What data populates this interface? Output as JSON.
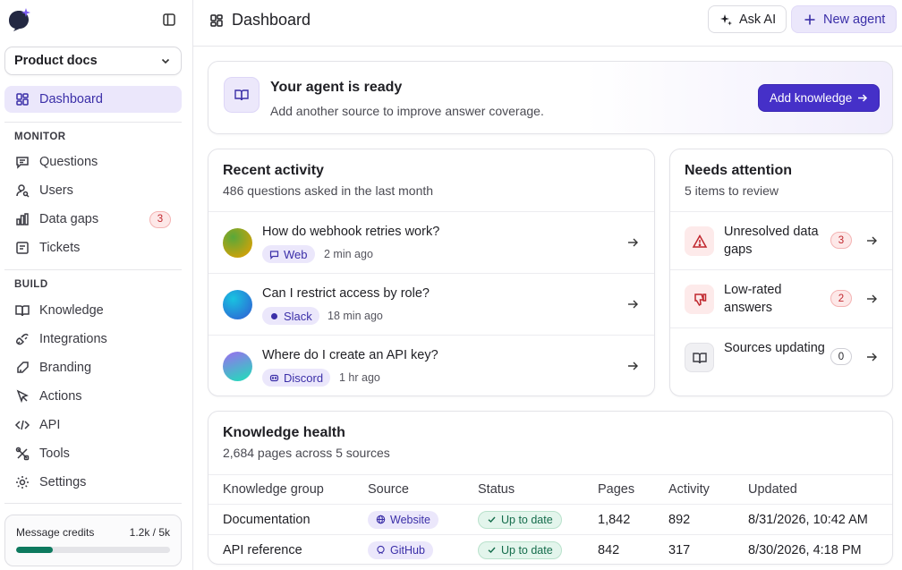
{
  "sidebar": {
    "workspace": "Product docs",
    "items_top": [
      {
        "label": "Dashboard",
        "icon": "dashboard-icon"
      }
    ],
    "monitor_label": "MONITOR",
    "monitor": [
      {
        "label": "Questions",
        "icon": "message-icon"
      },
      {
        "label": "Users",
        "icon": "users-icon"
      },
      {
        "label": "Data gaps",
        "icon": "bar-chart-icon",
        "count": "3"
      },
      {
        "label": "Tickets",
        "icon": "ticket-icon"
      }
    ],
    "build_label": "BUILD",
    "build": [
      {
        "label": "Knowledge",
        "icon": "book-icon"
      },
      {
        "label": "Integrations",
        "icon": "plug-icon"
      },
      {
        "label": "Branding",
        "icon": "brush-icon"
      },
      {
        "label": "Actions",
        "icon": "cursor-icon"
      },
      {
        "label": "API",
        "icon": "code-icon"
      },
      {
        "label": "Tools",
        "icon": "tools-icon"
      },
      {
        "label": "Settings",
        "icon": "gear-icon"
      }
    ],
    "credits": {
      "label": "Message credits",
      "value": "1.2k / 5k",
      "fraction": 0.24
    }
  },
  "header": {
    "title": "Dashboard",
    "ask_ai": "Ask AI",
    "new_agent": "New agent"
  },
  "banner": {
    "title": "Your agent is ready",
    "subtitle": "Add another source to improve answer coverage.",
    "button": "Add knowledge"
  },
  "activity": {
    "title": "Recent activity",
    "subtitle": "486 questions asked in the last month",
    "rows": [
      {
        "question": "How do webhook retries work?",
        "channel": "Web",
        "time": "2 min ago"
      },
      {
        "question": "Can I restrict access by role?",
        "channel": "Slack",
        "time": "18 min ago"
      },
      {
        "question": "Where do I create an API key?",
        "channel": "Discord",
        "time": "1 hr ago"
      }
    ]
  },
  "attention": {
    "title": "Needs attention",
    "subtitle": "5 items to review",
    "rows": [
      {
        "label": "Unresolved data gaps",
        "count": "3"
      },
      {
        "label": "Low-rated answers",
        "count": "2"
      },
      {
        "label": "Sources updating",
        "count": "0"
      }
    ]
  },
  "health": {
    "title": "Knowledge health",
    "subtitle": "2,684 pages across 5 sources",
    "columns": [
      "Knowledge group",
      "Source",
      "Status",
      "Pages",
      "Activity",
      "Updated"
    ],
    "rows": [
      {
        "group": "Documentation",
        "source": "Website",
        "status": "Up to date",
        "pages": "1,842",
        "activity": "892",
        "updated": "8/31/2026, 10:42 AM"
      },
      {
        "group": "API reference",
        "source": "GitHub",
        "status": "Up to date",
        "pages": "842",
        "activity": "317",
        "updated": "8/30/2026, 4:18 PM"
      }
    ]
  },
  "colors": {
    "accent": "#4530c8",
    "accent_soft": "#ebe7fb",
    "danger": "#c0262d",
    "success": "#146c4b"
  }
}
